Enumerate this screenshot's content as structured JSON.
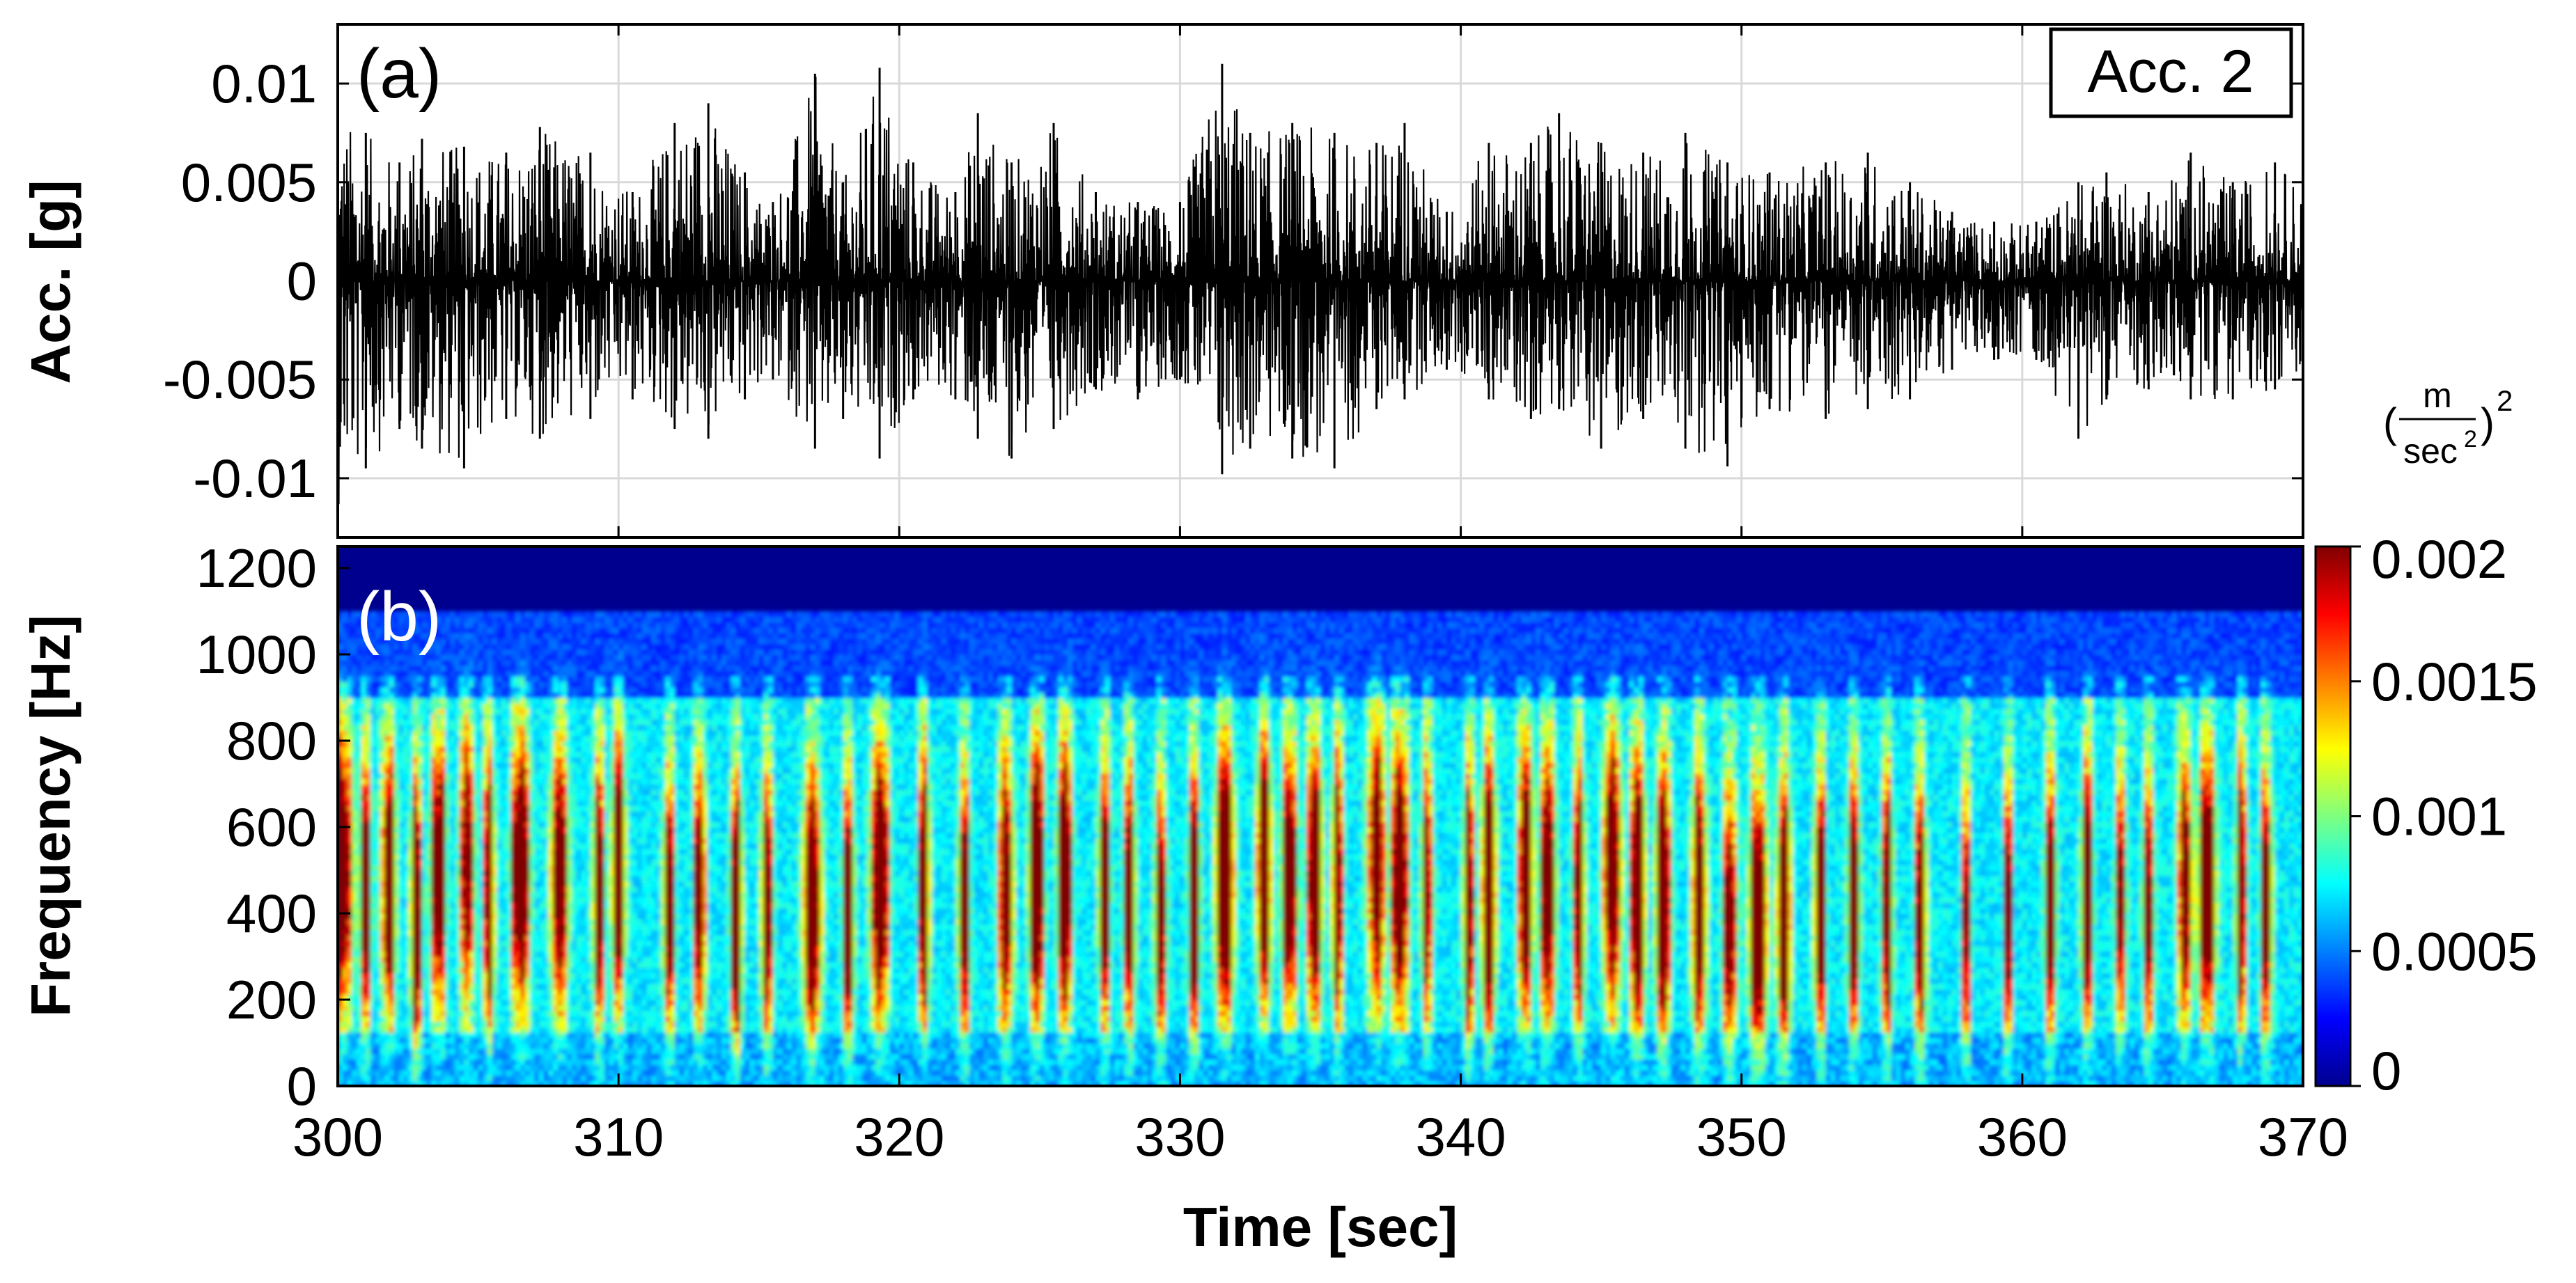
{
  "chart_data": [
    {
      "type": "line",
      "panel_label": "(a)",
      "legend_box": "Acc. 2",
      "xlabel": "Time [sec]",
      "ylabel": "Acc. [g]",
      "xlim": [
        300,
        370
      ],
      "ylim": [
        -0.013,
        0.013
      ],
      "xticks": [
        300,
        310,
        320,
        330,
        340,
        350,
        360,
        370
      ],
      "yticks": [
        -0.01,
        -0.005,
        0,
        0.005,
        0.01
      ],
      "ytick_labels": [
        "-0.01",
        "-0.005",
        "0",
        "0.005",
        "0.01"
      ],
      "grid": true,
      "series": [
        {
          "color": "#000000",
          "envelope_max": [
            {
              "x": 300.0,
              "y": 0.0085
            },
            {
              "x": 301.0,
              "y": 0.0075
            },
            {
              "x": 302.2,
              "y": 0.006
            },
            {
              "x": 303.0,
              "y": 0.0072
            },
            {
              "x": 304.5,
              "y": 0.0068
            },
            {
              "x": 306.0,
              "y": 0.0065
            },
            {
              "x": 307.2,
              "y": 0.0078
            },
            {
              "x": 309.0,
              "y": 0.0065
            },
            {
              "x": 310.5,
              "y": 0.0045
            },
            {
              "x": 312.0,
              "y": 0.008
            },
            {
              "x": 313.2,
              "y": 0.009
            },
            {
              "x": 314.5,
              "y": 0.0055
            },
            {
              "x": 315.5,
              "y": 0.004
            },
            {
              "x": 317.0,
              "y": 0.0105
            },
            {
              "x": 318.0,
              "y": 0.005
            },
            {
              "x": 319.3,
              "y": 0.0108
            },
            {
              "x": 320.5,
              "y": 0.006
            },
            {
              "x": 322.0,
              "y": 0.0045
            },
            {
              "x": 322.8,
              "y": 0.0085
            },
            {
              "x": 324.0,
              "y": 0.006
            },
            {
              "x": 325.5,
              "y": 0.008
            },
            {
              "x": 327.0,
              "y": 0.0045
            },
            {
              "x": 328.5,
              "y": 0.004
            },
            {
              "x": 330.0,
              "y": 0.004
            },
            {
              "x": 331.5,
              "y": 0.011
            },
            {
              "x": 332.5,
              "y": 0.0075
            },
            {
              "x": 334.0,
              "y": 0.008
            },
            {
              "x": 335.5,
              "y": 0.0075
            },
            {
              "x": 337.0,
              "y": 0.007
            },
            {
              "x": 338.0,
              "y": 0.008
            },
            {
              "x": 339.5,
              "y": 0.0035
            },
            {
              "x": 341.0,
              "y": 0.007
            },
            {
              "x": 342.5,
              "y": 0.007
            },
            {
              "x": 343.5,
              "y": 0.0085
            },
            {
              "x": 345.0,
              "y": 0.007
            },
            {
              "x": 346.5,
              "y": 0.0065
            },
            {
              "x": 348.0,
              "y": 0.0075
            },
            {
              "x": 349.5,
              "y": 0.006
            },
            {
              "x": 351.0,
              "y": 0.0055
            },
            {
              "x": 353.0,
              "y": 0.006
            },
            {
              "x": 354.5,
              "y": 0.0065
            },
            {
              "x": 356.0,
              "y": 0.005
            },
            {
              "x": 357.5,
              "y": 0.0035
            },
            {
              "x": 359.0,
              "y": 0.003
            },
            {
              "x": 360.5,
              "y": 0.003
            },
            {
              "x": 362.0,
              "y": 0.005
            },
            {
              "x": 363.0,
              "y": 0.0055
            },
            {
              "x": 364.5,
              "y": 0.0045
            },
            {
              "x": 366.0,
              "y": 0.0065
            },
            {
              "x": 367.5,
              "y": 0.005
            },
            {
              "x": 369.0,
              "y": 0.006
            },
            {
              "x": 370.0,
              "y": 0.005
            }
          ],
          "envelope_min": [
            {
              "x": 300.0,
              "y": -0.0115
            },
            {
              "x": 301.0,
              "y": -0.0095
            },
            {
              "x": 302.2,
              "y": -0.0075
            },
            {
              "x": 303.0,
              "y": -0.0085
            },
            {
              "x": 304.5,
              "y": -0.0095
            },
            {
              "x": 306.0,
              "y": -0.007
            },
            {
              "x": 307.2,
              "y": -0.008
            },
            {
              "x": 309.0,
              "y": -0.007
            },
            {
              "x": 310.5,
              "y": -0.006
            },
            {
              "x": 312.0,
              "y": -0.0075
            },
            {
              "x": 313.2,
              "y": -0.008
            },
            {
              "x": 314.5,
              "y": -0.006
            },
            {
              "x": 315.5,
              "y": -0.005
            },
            {
              "x": 317.0,
              "y": -0.0085
            },
            {
              "x": 318.0,
              "y": -0.007
            },
            {
              "x": 319.3,
              "y": -0.009
            },
            {
              "x": 320.5,
              "y": -0.006
            },
            {
              "x": 322.0,
              "y": -0.006
            },
            {
              "x": 322.8,
              "y": -0.008
            },
            {
              "x": 324.0,
              "y": -0.009
            },
            {
              "x": 325.5,
              "y": -0.0075
            },
            {
              "x": 327.0,
              "y": -0.0055
            },
            {
              "x": 328.5,
              "y": -0.006
            },
            {
              "x": 330.0,
              "y": -0.005
            },
            {
              "x": 331.5,
              "y": -0.0098
            },
            {
              "x": 332.5,
              "y": -0.0085
            },
            {
              "x": 334.0,
              "y": -0.009
            },
            {
              "x": 335.5,
              "y": -0.0095
            },
            {
              "x": 337.0,
              "y": -0.0065
            },
            {
              "x": 338.0,
              "y": -0.006
            },
            {
              "x": 339.5,
              "y": -0.0045
            },
            {
              "x": 341.0,
              "y": -0.006
            },
            {
              "x": 342.5,
              "y": -0.007
            },
            {
              "x": 343.5,
              "y": -0.0065
            },
            {
              "x": 345.0,
              "y": -0.0085
            },
            {
              "x": 346.5,
              "y": -0.007
            },
            {
              "x": 348.0,
              "y": -0.0085
            },
            {
              "x": 349.5,
              "y": -0.0094
            },
            {
              "x": 351.0,
              "y": -0.0065
            },
            {
              "x": 353.0,
              "y": -0.007
            },
            {
              "x": 354.5,
              "y": -0.0065
            },
            {
              "x": 356.0,
              "y": -0.006
            },
            {
              "x": 357.5,
              "y": -0.0045
            },
            {
              "x": 359.0,
              "y": -0.004
            },
            {
              "x": 360.5,
              "y": -0.004
            },
            {
              "x": 362.0,
              "y": -0.008
            },
            {
              "x": 363.0,
              "y": -0.006
            },
            {
              "x": 364.5,
              "y": -0.0055
            },
            {
              "x": 366.0,
              "y": -0.006
            },
            {
              "x": 367.5,
              "y": -0.006
            },
            {
              "x": 369.0,
              "y": -0.0055
            },
            {
              "x": 370.0,
              "y": -0.005
            }
          ]
        }
      ]
    },
    {
      "type": "heatmap",
      "panel_label": "(b)",
      "xlabel": "Time [sec]",
      "ylabel": "Frequency [Hz]",
      "xlim": [
        300,
        370
      ],
      "ylim": [
        0,
        1250
      ],
      "xticks": [
        300,
        310,
        320,
        330,
        340,
        350,
        360,
        370
      ],
      "yticks": [
        0,
        200,
        400,
        600,
        800,
        1000,
        1200
      ],
      "colormap": "jet",
      "colorbar": {
        "unit_label": "(m/sec²)²",
        "unit_numerator": "m",
        "unit_denominator": "sec",
        "unit_denominator_exp": "2",
        "unit_outer_exp": "2",
        "lim": [
          0,
          0.002
        ],
        "ticks": [
          0,
          0.0005,
          0.001,
          0.0015,
          0.002
        ],
        "tick_labels": [
          "0",
          "0.0005",
          "0.001",
          "0.0015",
          "0.002"
        ]
      },
      "energy_band_hz": [
        150,
        800
      ],
      "bursts": [
        {
          "x": 300.2,
          "f": 500,
          "w": 0.5
        },
        {
          "x": 301.0,
          "f": 450,
          "w": 0.3
        },
        {
          "x": 301.8,
          "f": 480,
          "w": 0.4
        },
        {
          "x": 302.8,
          "f": 400,
          "w": 0.3
        },
        {
          "x": 303.6,
          "f": 500,
          "w": 0.4
        },
        {
          "x": 304.6,
          "f": 520,
          "w": 0.4
        },
        {
          "x": 305.4,
          "f": 450,
          "w": 0.3
        },
        {
          "x": 306.5,
          "f": 500,
          "w": 0.5
        },
        {
          "x": 307.9,
          "f": 480,
          "w": 0.5
        },
        {
          "x": 309.3,
          "f": 450,
          "w": 0.3
        },
        {
          "x": 310.0,
          "f": 500,
          "w": 0.4
        },
        {
          "x": 311.8,
          "f": 420,
          "w": 0.3
        },
        {
          "x": 312.9,
          "f": 450,
          "w": 0.3
        },
        {
          "x": 314.2,
          "f": 400,
          "w": 0.3
        },
        {
          "x": 315.3,
          "f": 420,
          "w": 0.3
        },
        {
          "x": 316.9,
          "f": 420,
          "w": 0.5
        },
        {
          "x": 318.2,
          "f": 400,
          "w": 0.3
        },
        {
          "x": 319.3,
          "f": 480,
          "w": 0.5
        },
        {
          "x": 320.9,
          "f": 460,
          "w": 0.3
        },
        {
          "x": 322.3,
          "f": 420,
          "w": 0.3
        },
        {
          "x": 323.8,
          "f": 450,
          "w": 0.4
        },
        {
          "x": 324.9,
          "f": 480,
          "w": 0.4
        },
        {
          "x": 325.9,
          "f": 480,
          "w": 0.4
        },
        {
          "x": 327.3,
          "f": 450,
          "w": 0.3
        },
        {
          "x": 328.2,
          "f": 430,
          "w": 0.3
        },
        {
          "x": 329.3,
          "f": 400,
          "w": 0.3
        },
        {
          "x": 330.5,
          "f": 420,
          "w": 0.3
        },
        {
          "x": 331.6,
          "f": 480,
          "w": 0.5
        },
        {
          "x": 333.0,
          "f": 500,
          "w": 0.4
        },
        {
          "x": 333.9,
          "f": 480,
          "w": 0.4
        },
        {
          "x": 334.8,
          "f": 480,
          "w": 0.4
        },
        {
          "x": 335.6,
          "f": 460,
          "w": 0.3
        },
        {
          "x": 337.0,
          "f": 520,
          "w": 0.5
        },
        {
          "x": 337.8,
          "f": 480,
          "w": 0.5
        },
        {
          "x": 338.8,
          "f": 450,
          "w": 0.3
        },
        {
          "x": 340.3,
          "f": 420,
          "w": 0.3
        },
        {
          "x": 341.0,
          "f": 450,
          "w": 0.4
        },
        {
          "x": 342.3,
          "f": 480,
          "w": 0.4
        },
        {
          "x": 343.1,
          "f": 460,
          "w": 0.4
        },
        {
          "x": 344.2,
          "f": 450,
          "w": 0.3
        },
        {
          "x": 345.4,
          "f": 500,
          "w": 0.5
        },
        {
          "x": 346.3,
          "f": 450,
          "w": 0.4
        },
        {
          "x": 347.2,
          "f": 430,
          "w": 0.4
        },
        {
          "x": 348.5,
          "f": 420,
          "w": 0.4
        },
        {
          "x": 349.6,
          "f": 380,
          "w": 0.4
        },
        {
          "x": 350.6,
          "f": 380,
          "w": 0.5
        },
        {
          "x": 351.5,
          "f": 400,
          "w": 0.4
        },
        {
          "x": 352.8,
          "f": 420,
          "w": 0.3
        },
        {
          "x": 354.0,
          "f": 430,
          "w": 0.3
        },
        {
          "x": 355.2,
          "f": 420,
          "w": 0.3
        },
        {
          "x": 356.4,
          "f": 400,
          "w": 0.3
        },
        {
          "x": 358.0,
          "f": 380,
          "w": 0.2
        },
        {
          "x": 359.5,
          "f": 400,
          "w": 0.2
        },
        {
          "x": 361.0,
          "f": 420,
          "w": 0.3
        },
        {
          "x": 362.3,
          "f": 450,
          "w": 0.3
        },
        {
          "x": 363.5,
          "f": 430,
          "w": 0.3
        },
        {
          "x": 364.5,
          "f": 420,
          "w": 0.3
        },
        {
          "x": 365.8,
          "f": 460,
          "w": 0.4
        },
        {
          "x": 366.6,
          "f": 460,
          "w": 0.5
        },
        {
          "x": 367.8,
          "f": 450,
          "w": 0.3
        },
        {
          "x": 368.7,
          "f": 420,
          "w": 0.3
        }
      ]
    }
  ]
}
